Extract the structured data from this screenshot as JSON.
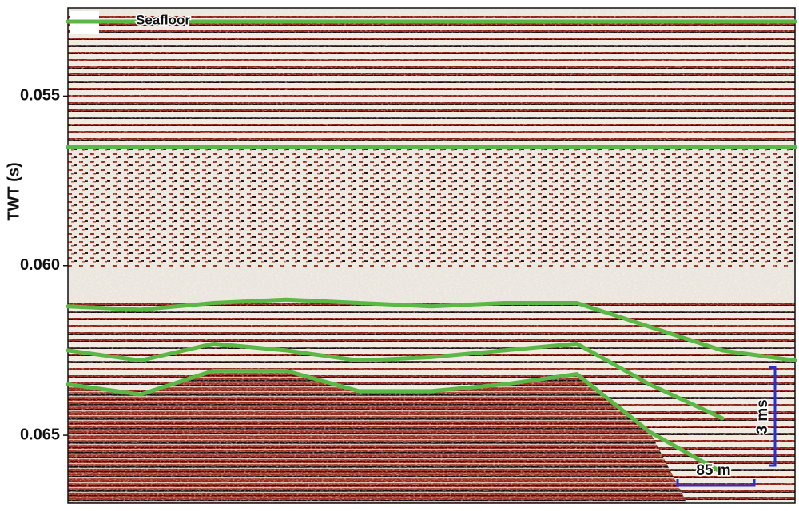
{
  "chart_data": {
    "type": "line",
    "y_label": "TWT (s)",
    "ylim": [
      0.0524,
      0.067
    ],
    "y_reversed": true,
    "yticks": [
      {
        "value": 0.055,
        "label": "0.055"
      },
      {
        "value": 0.06,
        "label": "0.060"
      },
      {
        "value": 0.065,
        "label": "0.065"
      }
    ],
    "categories": [
      null,
      null,
      null,
      null,
      null,
      null,
      null,
      null,
      null,
      null,
      null
    ],
    "series": [
      {
        "name": "Seafloor",
        "color": "#5cb846",
        "values": [
          0.0528,
          0.0528,
          0.0528,
          0.0528,
          0.0528,
          0.0528,
          0.0528,
          0.0528,
          0.0528,
          0.0528,
          0.0528
        ]
      },
      {
        "color": "#5cb846",
        "values": [
          0.0565,
          0.0565,
          0.0565,
          0.0565,
          0.0565,
          0.0565,
          0.0565,
          0.0565,
          0.0565,
          0.0565,
          0.0565
        ]
      },
      {
        "color": "#5cb846",
        "values": [
          0.0612,
          0.0613,
          0.0611,
          0.061,
          0.0611,
          0.0612,
          0.0611,
          0.0611,
          0.0618,
          0.0625,
          0.0628
        ]
      },
      {
        "color": "#5cb846",
        "values": [
          0.0625,
          0.0628,
          0.0623,
          0.0625,
          0.0628,
          0.0627,
          0.0625,
          0.0623,
          0.0635,
          0.0645,
          null
        ]
      },
      {
        "color": "#5cb846",
        "values": [
          0.0635,
          0.0638,
          0.0631,
          0.0631,
          0.0637,
          0.0637,
          0.0635,
          0.0632,
          0.0649,
          0.0661,
          null
        ]
      }
    ],
    "annotations": [
      "3 ms",
      "85 m"
    ]
  }
}
